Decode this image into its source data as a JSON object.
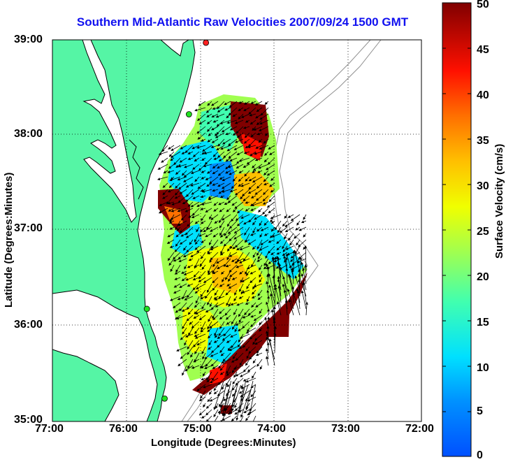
{
  "title": "Southern Mid-Atlantic Raw Velocities 2007/09/24 1500 GMT",
  "x_axis": {
    "label": "Longitude (Degrees:Minutes)",
    "ticks": [
      "77:00",
      "76:00",
      "75:00",
      "74:00",
      "73:00",
      "72:00"
    ]
  },
  "y_axis": {
    "label": "Latitude (Degrees:Minutes)",
    "ticks": [
      "39:00",
      "38:00",
      "37:00",
      "36:00",
      "35:00"
    ]
  },
  "colorbar": {
    "label": "Surface Velocity (cm/s)",
    "ticks": [
      "50",
      "45",
      "40",
      "35",
      "30",
      "25",
      "20",
      "15",
      "10",
      "5",
      "0"
    ],
    "range": [
      0,
      50
    ],
    "colormap": "jet"
  },
  "map": {
    "lon_range": [
      -77,
      -72
    ],
    "lat_range": [
      35,
      39
    ],
    "land_color": "#55f5a5",
    "coast_color": "#000000",
    "bathymetry_color": "#909090",
    "grid": "dotted",
    "stations": [
      {
        "lon": -74.92,
        "lat": 38.97,
        "color": "#ff2020"
      },
      {
        "lon": -75.15,
        "lat": 38.22,
        "color": "#20e020"
      },
      {
        "lon": -75.72,
        "lat": 36.18,
        "color": "#20e020"
      },
      {
        "lon": -75.48,
        "lat": 35.24,
        "color": "#20e020"
      }
    ]
  }
}
